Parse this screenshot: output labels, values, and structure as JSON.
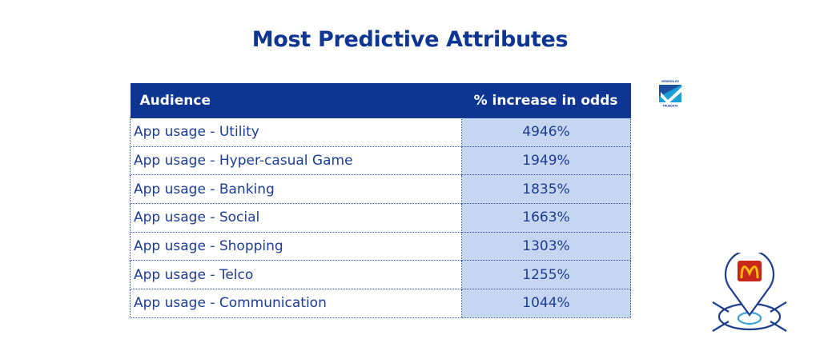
{
  "title": "Most Predictive Attributes",
  "table": {
    "headers": [
      "Audience",
      "% increase in odds"
    ],
    "rows": [
      {
        "audience": "App usage - Utility",
        "value": "4946%"
      },
      {
        "audience": "App usage - Hyper-casual Game",
        "value": "1949%"
      },
      {
        "audience": "App usage - Banking",
        "value": "1835%"
      },
      {
        "audience": "App usage - Social",
        "value": "1663%"
      },
      {
        "audience": "App usage - Shopping",
        "value": "1303%"
      },
      {
        "audience": "App usage - Telco",
        "value": "1255%"
      },
      {
        "audience": "App usage - Communication",
        "value": "1044%"
      }
    ]
  },
  "badge": {
    "top_text": "VERIFIED BY",
    "bottom_text": "TRUEDATA",
    "icon": "checkmark-shield-icon"
  },
  "colors": {
    "primary": "#0d3591",
    "value_cell": "#c6d5f0",
    "logo_red": "#c8251b",
    "logo_yellow": "#ffbc0d"
  },
  "location_icon": "map-pin-mcdonalds-logo-icon"
}
